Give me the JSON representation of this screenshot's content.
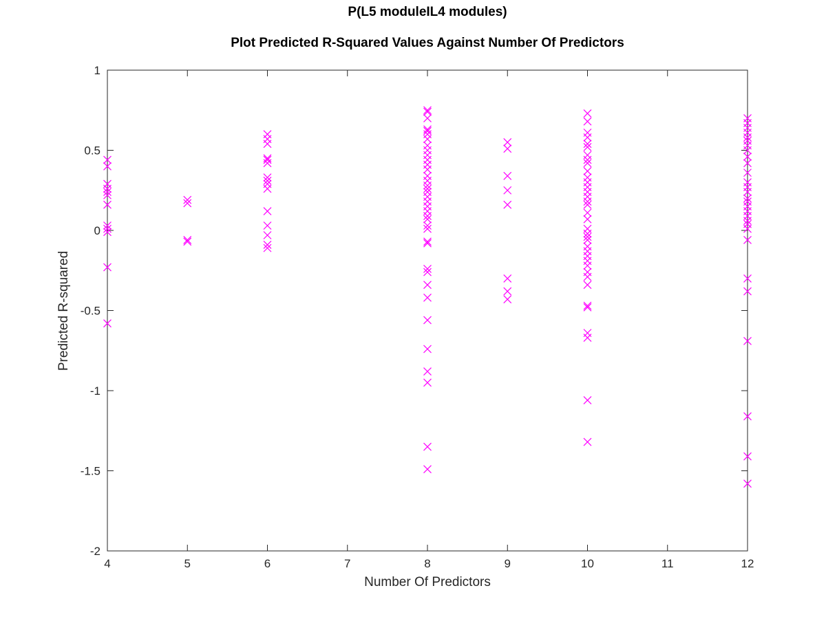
{
  "chart_data": {
    "type": "scatter",
    "title": "P(L5 moduleIL4 modules)",
    "subtitle": "Plot Predicted R-Squared Values Against Number Of Predictors",
    "xlabel": "Number Of Predictors",
    "ylabel": "Predicted R-squared",
    "xlim": [
      4,
      12
    ],
    "ylim": [
      -2,
      1
    ],
    "x_ticks": [
      4,
      5,
      6,
      7,
      8,
      9,
      10,
      11,
      12
    ],
    "y_ticks": [
      1,
      0.5,
      0,
      -0.5,
      -1,
      -1.5,
      -2
    ],
    "x_tick_labels": [
      "4",
      "5",
      "6",
      "7",
      "8",
      "9",
      "10",
      "11",
      "12"
    ],
    "y_tick_labels": [
      "1",
      "0.5",
      "0",
      "-0.5",
      "-1",
      "-1.5",
      "-2"
    ],
    "grid": false,
    "marker": "x",
    "marker_color": "#ff00ff",
    "axis_color": "#262626",
    "series": [
      {
        "points": [
          [
            4,
            0.44
          ],
          [
            4,
            0.4
          ],
          [
            4,
            0.29
          ],
          [
            4,
            0.26
          ],
          [
            4,
            0.24
          ],
          [
            4,
            0.22
          ],
          [
            4,
            0.16
          ],
          [
            4,
            0.03
          ],
          [
            4,
            0.01
          ],
          [
            4,
            -0.01
          ],
          [
            4,
            -0.23
          ],
          [
            4,
            -0.58
          ],
          [
            5,
            0.19
          ],
          [
            5,
            0.17
          ],
          [
            5,
            -0.06
          ],
          [
            5,
            -0.07
          ],
          [
            6,
            0.6
          ],
          [
            6,
            0.57
          ],
          [
            6,
            0.54
          ],
          [
            6,
            0.45
          ],
          [
            6,
            0.44
          ],
          [
            6,
            0.42
          ],
          [
            6,
            0.33
          ],
          [
            6,
            0.31
          ],
          [
            6,
            0.29
          ],
          [
            6,
            0.26
          ],
          [
            6,
            0.12
          ],
          [
            6,
            0.03
          ],
          [
            6,
            -0.03
          ],
          [
            6,
            -0.09
          ],
          [
            6,
            -0.11
          ],
          [
            8,
            0.75
          ],
          [
            8,
            0.74
          ],
          [
            8,
            0.7
          ],
          [
            8,
            0.63
          ],
          [
            8,
            0.62
          ],
          [
            8,
            0.6
          ],
          [
            8,
            0.57
          ],
          [
            8,
            0.53
          ],
          [
            8,
            0.5
          ],
          [
            8,
            0.47
          ],
          [
            8,
            0.44
          ],
          [
            8,
            0.41
          ],
          [
            8,
            0.38
          ],
          [
            8,
            0.34
          ],
          [
            8,
            0.31
          ],
          [
            8,
            0.28
          ],
          [
            8,
            0.26
          ],
          [
            8,
            0.24
          ],
          [
            8,
            0.21
          ],
          [
            8,
            0.18
          ],
          [
            8,
            0.15
          ],
          [
            8,
            0.12
          ],
          [
            8,
            0.09
          ],
          [
            8,
            0.07
          ],
          [
            8,
            0.03
          ],
          [
            8,
            0.01
          ],
          [
            8,
            -0.07
          ],
          [
            8,
            -0.08
          ],
          [
            8,
            -0.24
          ],
          [
            8,
            -0.26
          ],
          [
            8,
            -0.34
          ],
          [
            8,
            -0.42
          ],
          [
            8,
            -0.56
          ],
          [
            8,
            -0.74
          ],
          [
            8,
            -0.88
          ],
          [
            8,
            -0.95
          ],
          [
            8,
            -1.35
          ],
          [
            8,
            -1.49
          ],
          [
            9,
            0.55
          ],
          [
            9,
            0.51
          ],
          [
            9,
            0.34
          ],
          [
            9,
            0.25
          ],
          [
            9,
            0.16
          ],
          [
            9,
            -0.3
          ],
          [
            9,
            -0.38
          ],
          [
            9,
            -0.43
          ],
          [
            10,
            0.73
          ],
          [
            10,
            0.68
          ],
          [
            10,
            0.61
          ],
          [
            10,
            0.58
          ],
          [
            10,
            0.54
          ],
          [
            10,
            0.52
          ],
          [
            10,
            0.47
          ],
          [
            10,
            0.44
          ],
          [
            10,
            0.42
          ],
          [
            10,
            0.37
          ],
          [
            10,
            0.33
          ],
          [
            10,
            0.3
          ],
          [
            10,
            0.27
          ],
          [
            10,
            0.24
          ],
          [
            10,
            0.21
          ],
          [
            10,
            0.18
          ],
          [
            10,
            0.16
          ],
          [
            10,
            0.11
          ],
          [
            10,
            0.07
          ],
          [
            10,
            0.01
          ],
          [
            10,
            -0.02
          ],
          [
            10,
            -0.04
          ],
          [
            10,
            -0.06
          ],
          [
            10,
            -0.1
          ],
          [
            10,
            -0.13
          ],
          [
            10,
            -0.16
          ],
          [
            10,
            -0.19
          ],
          [
            10,
            -0.22
          ],
          [
            10,
            -0.26
          ],
          [
            10,
            -0.29
          ],
          [
            10,
            -0.34
          ],
          [
            10,
            -0.47
          ],
          [
            10,
            -0.48
          ],
          [
            10,
            -0.64
          ],
          [
            10,
            -0.67
          ],
          [
            10,
            -1.06
          ],
          [
            10,
            -1.32
          ],
          [
            12,
            0.7
          ],
          [
            12,
            0.67
          ],
          [
            12,
            0.64
          ],
          [
            12,
            0.61
          ],
          [
            12,
            0.58
          ],
          [
            12,
            0.56
          ],
          [
            12,
            0.53
          ],
          [
            12,
            0.5
          ],
          [
            12,
            0.46
          ],
          [
            12,
            0.42
          ],
          [
            12,
            0.36
          ],
          [
            12,
            0.3
          ],
          [
            12,
            0.27
          ],
          [
            12,
            0.24
          ],
          [
            12,
            0.2
          ],
          [
            12,
            0.18
          ],
          [
            12,
            0.15
          ],
          [
            12,
            0.12
          ],
          [
            12,
            0.09
          ],
          [
            12,
            0.06
          ],
          [
            12,
            0.04
          ],
          [
            12,
            0.01
          ],
          [
            12,
            -0.06
          ],
          [
            12,
            -0.3
          ],
          [
            12,
            -0.38
          ],
          [
            12,
            -0.69
          ],
          [
            12,
            -1.16
          ],
          [
            12,
            -1.41
          ],
          [
            12,
            -1.58
          ]
        ]
      }
    ]
  }
}
